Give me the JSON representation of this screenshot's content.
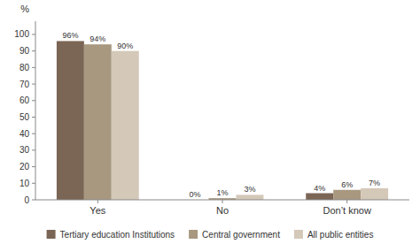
{
  "chart_data": {
    "type": "bar",
    "categories": [
      "Yes",
      "No",
      "Don’t know"
    ],
    "series": [
      {
        "name": "Tertiary education Institutions",
        "color": "#7B6555",
        "values": [
          96,
          0,
          4
        ],
        "value_labels": [
          "96%",
          "0%",
          "4%"
        ]
      },
      {
        "name": "Central government",
        "color": "#A89880",
        "values": [
          94,
          1,
          6
        ],
        "value_labels": [
          "94%",
          "1%",
          "6%"
        ]
      },
      {
        "name": "All public entities",
        "color": "#D4C8B8",
        "values": [
          90,
          3,
          7
        ],
        "value_labels": [
          "90%",
          "3%",
          "7%"
        ]
      }
    ],
    "ylabel": "%",
    "ylim": [
      0,
      108
    ],
    "yticks": [
      0,
      10,
      20,
      30,
      40,
      50,
      60,
      70,
      80,
      90,
      100
    ],
    "grid": false,
    "legend": "bottom",
    "data_labels": true
  }
}
